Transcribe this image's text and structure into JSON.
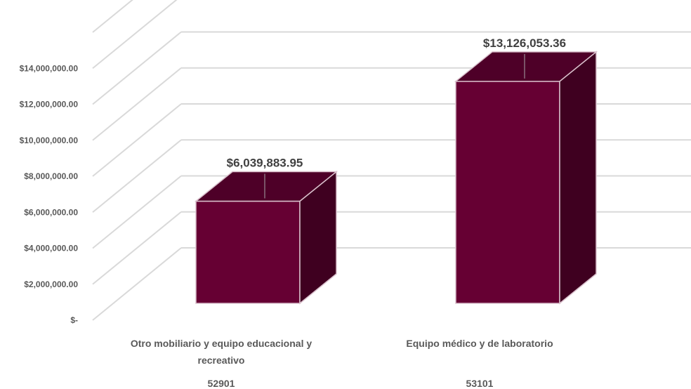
{
  "chart_data": {
    "type": "bar",
    "title": "",
    "xlabel": "",
    "ylabel": "",
    "ylim": [
      0,
      14000000
    ],
    "y_ticks": [
      "$-",
      "$2,000,000.00",
      "$4,000,000.00",
      "$6,000,000.00",
      "$8,000,000.00",
      "$10,000,000.00",
      "$12,000,000.00",
      "$14,000,000.00"
    ],
    "categories": [
      {
        "line1": "Otro mobiliario y equipo educacional y",
        "line2": "recreativo",
        "code": "52901"
      },
      {
        "line1": "Equipo médico y de laboratorio",
        "line2": "",
        "code": "53101"
      }
    ],
    "values": [
      6039883.95,
      13126053.36
    ],
    "data_labels": [
      "$6,039,883.95",
      "$13,126,053.36"
    ],
    "bar_color": "#660033",
    "bar_side_color": "#3f0020",
    "bar_top_color": "#4e0028",
    "grid": true,
    "legend": "none"
  }
}
